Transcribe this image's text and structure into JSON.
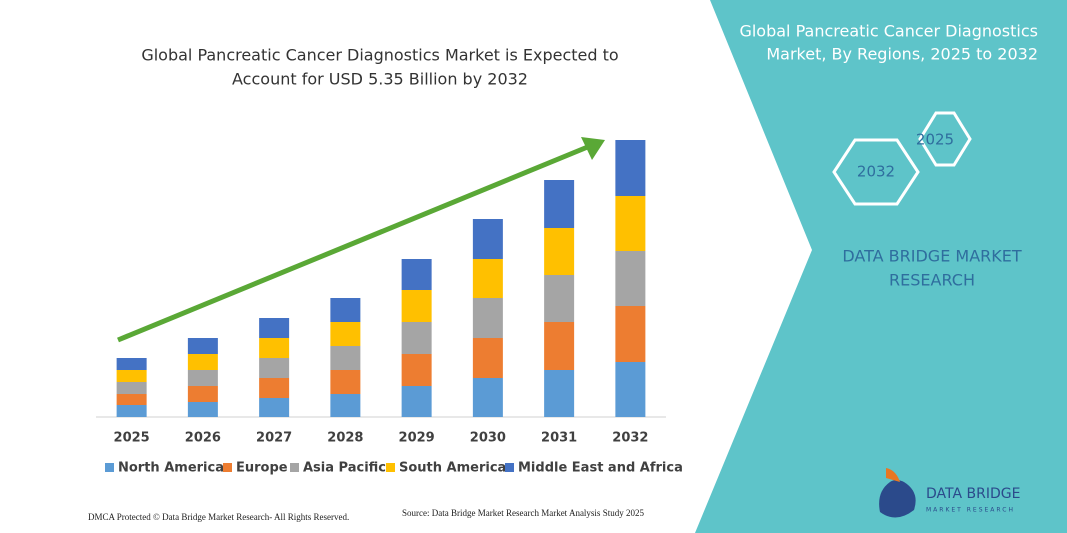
{
  "chart_data": {
    "type": "stacked_bar",
    "title": [
      "Global Pancreatic Cancer Diagnostics Market is Expected to",
      "Account for USD 5.35 Billion by 2032"
    ],
    "categories": [
      "2025",
      "2026",
      "2027",
      "2028",
      "2029",
      "2030",
      "2031",
      "2032"
    ],
    "series": [
      {
        "name": "North America",
        "color": "#5b9bd5",
        "values": [
          12,
          15,
          19,
          23,
          31,
          39,
          47,
          55
        ]
      },
      {
        "name": "Europe",
        "color": "#ed7d31",
        "values": [
          11,
          16,
          20,
          24,
          32,
          40,
          48,
          56
        ]
      },
      {
        "name": "Asia Pacific",
        "color": "#a5a5a5",
        "values": [
          12,
          16,
          20,
          24,
          32,
          40,
          47,
          55
        ]
      },
      {
        "name": "South America",
        "color": "#ffc000",
        "values": [
          12,
          16,
          20,
          24,
          32,
          39,
          47,
          55
        ]
      },
      {
        "name": "Middle East and Africa",
        "color": "#4472c4",
        "values": [
          12,
          16,
          20,
          24,
          31,
          40,
          48,
          56
        ]
      }
    ],
    "ylim": [
      0,
      280
    ]
  },
  "panel": {
    "title": [
      "Global Pancreatic Cancer Diagnostics",
      "Market, By Regions, 2025 to 2032"
    ],
    "hex_front": "2032",
    "hex_back": "2025",
    "brand": [
      "DATA BRIDGE MARKET",
      "RESEARCH"
    ]
  },
  "footer": {
    "dmca": "DMCA Protected © Data Bridge Market Research- All Rights Reserved.",
    "source": "Source: Data Bridge Market Research  Market Analysis Study 2025"
  },
  "logo": {
    "name": "DATA BRIDGE",
    "tagline": "MARKET RESEARCH"
  }
}
